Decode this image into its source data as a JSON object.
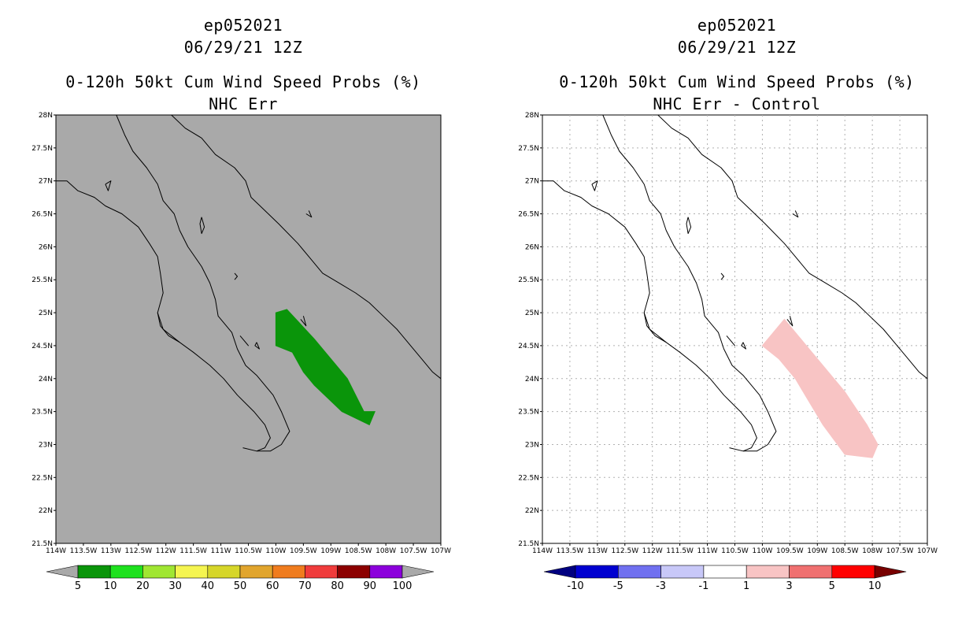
{
  "colors": {
    "left_background": "#a9a9a9",
    "green_prob": "#0a950a",
    "pink_diff": "#f8c4c4",
    "coast": "#000000",
    "grid": "#b0b0b0"
  },
  "panels": [
    {
      "line1": "ep052021",
      "line2": "06/29/21 12Z",
      "line3": "0-120h 50kt Cum Wind Speed Probs (%)",
      "line4": "NHC Err"
    },
    {
      "line1": "ep052021",
      "line2": "06/29/21 12Z",
      "line3": "0-120h 50kt Cum Wind Speed Probs (%)",
      "line4": "NHC Err - Control"
    }
  ],
  "map": {
    "lat_min": 21.5,
    "lat_max": 28.0,
    "lon_min": -114.0,
    "lon_max": -107.0,
    "lat_labels": [
      "28N",
      "27.5N",
      "27N",
      "26.5N",
      "26N",
      "25.5N",
      "25N",
      "24.5N",
      "24N",
      "23.5N",
      "23N",
      "22.5N",
      "22N",
      "21.5N"
    ],
    "lon_labels": [
      "114W",
      "113.5W",
      "113W",
      "112.5W",
      "112W",
      "111.5W",
      "111W",
      "110.5W",
      "110W",
      "109.5W",
      "109W",
      "108.5W",
      "108W",
      "107.5W",
      "107W"
    ],
    "left_polygon_lonlat": [
      [
        -110.0,
        25.0
      ],
      [
        -109.8,
        25.05
      ],
      [
        -109.3,
        24.6
      ],
      [
        -108.7,
        24.0
      ],
      [
        -108.4,
        23.5
      ],
      [
        -108.2,
        23.5
      ],
      [
        -108.3,
        23.3
      ],
      [
        -108.8,
        23.5
      ],
      [
        -109.3,
        23.9
      ],
      [
        -109.5,
        24.1
      ],
      [
        -109.7,
        24.4
      ],
      [
        -110.0,
        24.5
      ]
    ],
    "right_polygon_lonlat": [
      [
        -110.0,
        24.5
      ],
      [
        -109.6,
        24.9
      ],
      [
        -109.1,
        24.4
      ],
      [
        -108.5,
        23.8
      ],
      [
        -108.1,
        23.3
      ],
      [
        -107.9,
        23.0
      ],
      [
        -108.0,
        22.8
      ],
      [
        -108.5,
        22.85
      ],
      [
        -108.9,
        23.3
      ],
      [
        -109.4,
        24.0
      ],
      [
        -109.7,
        24.3
      ]
    ]
  },
  "colorbar_left": {
    "colors": [
      "#0a950a",
      "#1ee11e",
      "#a0e632",
      "#f5f550",
      "#d6d62a",
      "#e1a52d",
      "#f07c1e",
      "#f03c3c",
      "#8c0000",
      "#8c00dc"
    ],
    "labels": [
      "5",
      "10",
      "20",
      "30",
      "40",
      "50",
      "60",
      "70",
      "80",
      "90",
      "100"
    ],
    "end_color": "#a9a9a9"
  },
  "colorbar_right": {
    "colors": [
      "#0000d0",
      "#7070f0",
      "#c8c8f8",
      "#ffffff",
      "#f8c4c4",
      "#f07070",
      "#ff0000"
    ],
    "labels": [
      "-10",
      "-5",
      "-3",
      "-1",
      "1",
      "3",
      "5",
      "10"
    ],
    "low_end_color": "#000080",
    "high_end_color": "#780000"
  }
}
